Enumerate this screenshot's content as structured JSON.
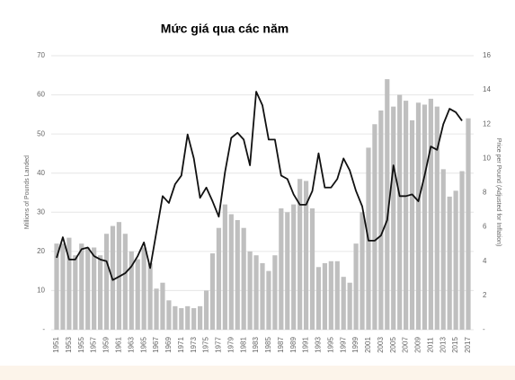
{
  "chart_data": {
    "type": "bar",
    "title": "Mức giá qua các năm",
    "y_label": "Millions of Pounds Landed",
    "y2_label": "Price per Pound (Adjusted for Inflation)",
    "categories": [
      "1951",
      null,
      "1953",
      null,
      "1955",
      null,
      "1957",
      null,
      "1959",
      null,
      "1961",
      null,
      "1963",
      null,
      "1965",
      null,
      "1967",
      null,
      "1969",
      null,
      "1971",
      null,
      "1973",
      null,
      "1975",
      null,
      "1977",
      null,
      "1979",
      null,
      "1981",
      null,
      "1983",
      null,
      "1985",
      null,
      "1987",
      null,
      "1989",
      null,
      "1991",
      null,
      "1993",
      null,
      "1995",
      null,
      "1997",
      null,
      "1999",
      null,
      "2001",
      null,
      "2003",
      null,
      "2005",
      null,
      "2007",
      null,
      "2009",
      null,
      "2011",
      null,
      "2013",
      null,
      "2015",
      null,
      "2017"
    ],
    "series": [
      {
        "type": "bar",
        "color": "#bfbfbf",
        "values": [
          22,
          22,
          23.5,
          19,
          22,
          21,
          21,
          19,
          24.5,
          26.5,
          27.5,
          24.5,
          20,
          18,
          21,
          17,
          10.5,
          12,
          7.5,
          6,
          5.5,
          6,
          5.5,
          6,
          10,
          19.5,
          26,
          32,
          29.5,
          28,
          26,
          20,
          19,
          17,
          15,
          19,
          31,
          30,
          32,
          38.5,
          38,
          31,
          16,
          17,
          17.5,
          17.5,
          13.5,
          12,
          22,
          30,
          46.5,
          52.5,
          56,
          64,
          57,
          60,
          58.5,
          53.5,
          58,
          57.5,
          59,
          57,
          41,
          34,
          35.5,
          40.5,
          54
        ]
      },
      {
        "type": "line",
        "axis": "y2",
        "color": "#111111",
        "values": [
          4.2,
          5.4,
          4.1,
          4.1,
          4.7,
          4.8,
          4.3,
          4.1,
          4.0,
          2.9,
          3.1,
          3.3,
          3.7,
          4.3,
          5.1,
          3.6,
          5.7,
          7.8,
          7.4,
          8.5,
          9.0,
          11.4,
          10.0,
          7.7,
          8.3,
          7.5,
          6.6,
          9.2,
          11.2,
          11.5,
          11.1,
          9.6,
          13.9,
          13.1,
          11.1,
          11.1,
          9.0,
          8.8,
          7.9,
          7.3,
          7.3,
          8.1,
          10.3,
          8.3,
          8.3,
          8.8,
          10.0,
          9.3,
          8.1,
          7.2,
          5.2,
          5.2,
          5.5,
          6.4,
          9.6,
          7.8,
          7.8,
          7.9,
          7.5,
          9.0,
          10.7,
          10.5,
          12.0,
          12.9,
          12.7,
          12.2,
          null
        ]
      }
    ],
    "ylim": [
      0,
      70
    ],
    "yticks": [
      {
        "value": 0,
        "label": "-"
      },
      10,
      20,
      30,
      40,
      50,
      60,
      70
    ],
    "y2lim": [
      0,
      16
    ],
    "y2ticks": [
      {
        "value": 0,
        "label": "-"
      },
      2,
      4,
      6,
      8,
      10,
      12,
      14,
      16
    ],
    "grid": true
  }
}
